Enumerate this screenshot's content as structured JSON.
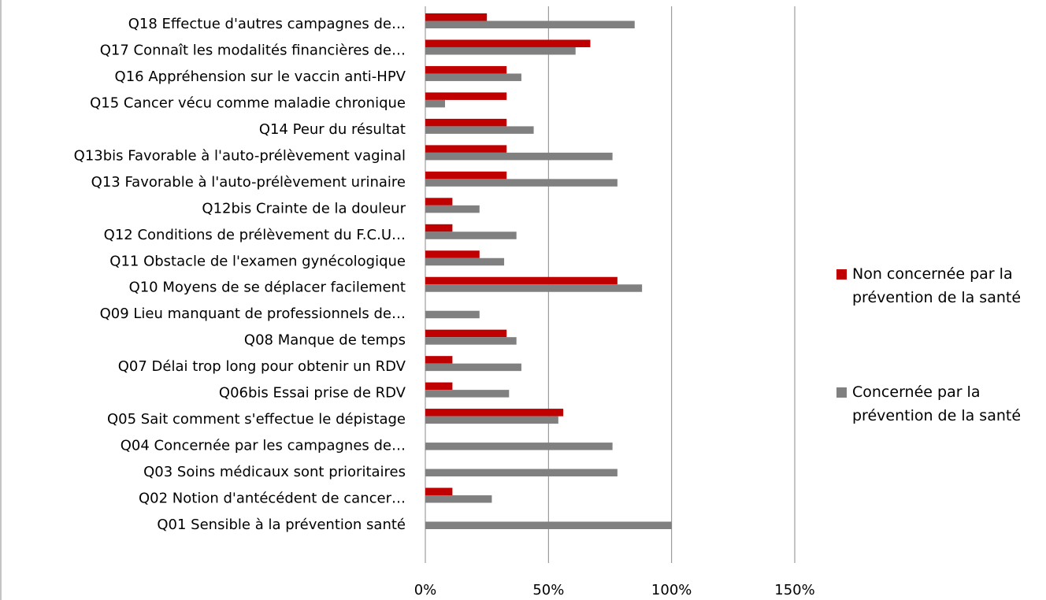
{
  "chart_data": {
    "type": "bar",
    "orientation": "horizontal",
    "categories": [
      "Q01 Sensible à la prévention santé",
      "Q02 Notion d'antécédent de cancer…",
      "Q03 Soins médicaux sont prioritaires",
      "Q04 Concernée par les campagnes de…",
      "Q05 Sait comment s'effectue le dépistage",
      "Q06bis Essai prise de RDV",
      "Q07 Délai trop long pour obtenir un RDV",
      "Q08 Manque de temps",
      "Q09 Lieu manquant de professionnels de…",
      "Q10 Moyens de se déplacer facilement",
      "Q11 Obstacle de l'examen gynécologique",
      "Q12 Conditions de prélèvement du F.C.U…",
      "Q12bis Crainte de la douleur",
      "Q13 Favorable à l'auto-prélèvement urinaire",
      "Q13bis Favorable à l'auto-prélèvement vaginal",
      "Q14 Peur du résultat",
      "Q15 Cancer vécu comme maladie chronique",
      "Q16 Appréhension sur le vaccin anti-HPV",
      "Q17 Connaît les modalités financières de…",
      "Q18 Effectue d'autres campagnes de…"
    ],
    "series": [
      {
        "name": "Non concernée par la prévention de la santé",
        "color": "#c00000",
        "values": [
          0,
          11,
          0,
          0,
          56,
          11,
          11,
          33,
          0,
          78,
          22,
          11,
          11,
          33,
          33,
          33,
          33,
          33,
          67,
          25
        ]
      },
      {
        "name": "Concernée par la prévention de la santé",
        "color": "#808080",
        "values": [
          100,
          27,
          78,
          76,
          54,
          34,
          39,
          37,
          22,
          88,
          32,
          37,
          22,
          78,
          76,
          44,
          8,
          39,
          61,
          85
        ]
      }
    ],
    "xlim": [
      0,
      150
    ],
    "xticks": [
      {
        "value": 0,
        "label": "0%"
      },
      {
        "value": 50,
        "label": "50%"
      },
      {
        "value": 100,
        "label": "100%"
      },
      {
        "value": 150,
        "label": "150%"
      }
    ],
    "grid": true,
    "legend": "right"
  }
}
